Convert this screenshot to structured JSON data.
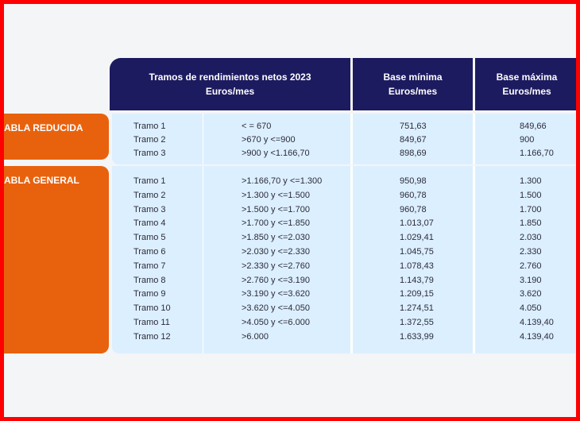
{
  "header": {
    "columns": [
      [
        "Tramos de rendimientos netos 2023",
        "Euros/mes"
      ],
      [
        "Base mínima",
        "Euros/mes"
      ],
      [
        "Base máxima",
        "Euros/mes"
      ]
    ]
  },
  "sections": [
    {
      "label": "ABLA REDUCIDA",
      "rows": [
        [
          "Tramo 1",
          "< = 670",
          "751,63",
          "849,66"
        ],
        [
          "Tramo 2",
          ">670 y <=900",
          "849,67",
          "900"
        ],
        [
          "Tramo 3",
          ">900 y <1.166,70",
          "898,69",
          "1.166,70"
        ]
      ]
    },
    {
      "label": "ABLA GENERAL",
      "rows": [
        [
          "Tramo 1",
          ">1.166,70 y <=1.300",
          "950,98",
          "1.300"
        ],
        [
          "Tramo 2",
          ">1.300 y <=1.500",
          "960,78",
          "1.500"
        ],
        [
          "Tramo 3",
          ">1.500 y <=1.700",
          "960,78",
          "1.700"
        ],
        [
          "Tramo 4",
          ">1.700 y <=1.850",
          "1.013,07",
          "1.850"
        ],
        [
          "Tramo 5",
          ">1.850 y <=2.030",
          "1.029,41",
          "2.030"
        ],
        [
          "Tramo 6",
          ">2.030 y <=2.330",
          "1.045,75",
          "2.330"
        ],
        [
          "Tramo 7",
          ">2.330 y <=2.760",
          "1.078,43",
          "2.760"
        ],
        [
          "Tramo 8",
          ">2.760 y <=3.190",
          "1.143,79",
          "3.190"
        ],
        [
          "Tramo 9",
          ">3.190 y <=3.620",
          "1.209,15",
          "3.620"
        ],
        [
          "Tramo 10",
          ">3.620 y <=4.050",
          "1.274,51",
          "4.050"
        ],
        [
          "Tramo 11",
          ">4.050 y <=6.000",
          "1.372,55",
          "4.139,40"
        ],
        [
          "Tramo 12",
          ">6.000",
          "1.633,99",
          "4.139,40"
        ]
      ]
    }
  ]
}
